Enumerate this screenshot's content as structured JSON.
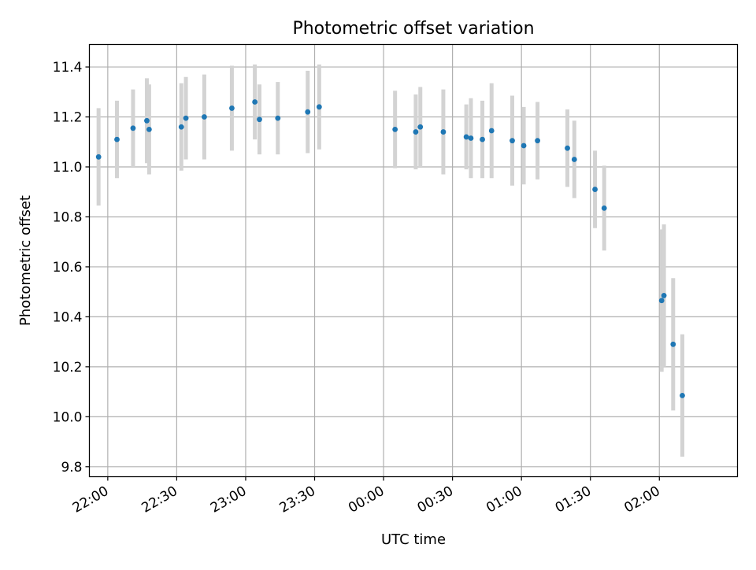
{
  "chart_data": {
    "type": "scatter",
    "title": "Photometric offset variation",
    "xlabel": "UTC time",
    "ylabel": "Photometric offset",
    "xlim": [
      "21:52",
      "02:34"
    ],
    "ylim": [
      9.76,
      11.49
    ],
    "x_ticks": [
      "22:00",
      "22:30",
      "23:00",
      "23:30",
      "00:00",
      "00:30",
      "01:00",
      "01:30",
      "02:00"
    ],
    "y_ticks": [
      "9.8",
      "10.0",
      "10.2",
      "10.4",
      "10.6",
      "10.8",
      "11.0",
      "11.2",
      "11.4"
    ],
    "grid": true,
    "marker_color": "#1f77b4",
    "errorbar_color": "#d3d3d3",
    "series": [
      {
        "points": [
          {
            "t": "21:56",
            "y": 11.04,
            "err": 0.195
          },
          {
            "t": "22:04",
            "y": 11.11,
            "err": 0.155
          },
          {
            "t": "22:11",
            "y": 11.155,
            "err": 0.155
          },
          {
            "t": "22:17",
            "y": 11.185,
            "err": 0.17
          },
          {
            "t": "22:18",
            "y": 11.15,
            "err": 0.18
          },
          {
            "t": "22:32",
            "y": 11.16,
            "err": 0.175
          },
          {
            "t": "22:34",
            "y": 11.195,
            "err": 0.165
          },
          {
            "t": "22:42",
            "y": 11.2,
            "err": 0.17
          },
          {
            "t": "22:54",
            "y": 11.235,
            "err": 0.17
          },
          {
            "t": "23:04",
            "y": 11.26,
            "err": 0.15
          },
          {
            "t": "23:06",
            "y": 11.19,
            "err": 0.14
          },
          {
            "t": "23:14",
            "y": 11.195,
            "err": 0.145
          },
          {
            "t": "23:27",
            "y": 11.22,
            "err": 0.165
          },
          {
            "t": "23:32",
            "y": 11.24,
            "err": 0.17
          },
          {
            "t": "00:05",
            "y": 11.15,
            "err": 0.155
          },
          {
            "t": "00:14",
            "y": 11.14,
            "err": 0.15
          },
          {
            "t": "00:16",
            "y": 11.16,
            "err": 0.16
          },
          {
            "t": "00:26",
            "y": 11.14,
            "err": 0.17
          },
          {
            "t": "00:36",
            "y": 11.12,
            "err": 0.13
          },
          {
            "t": "00:38",
            "y": 11.115,
            "err": 0.16
          },
          {
            "t": "00:43",
            "y": 11.11,
            "err": 0.155
          },
          {
            "t": "00:47",
            "y": 11.145,
            "err": 0.19
          },
          {
            "t": "00:56",
            "y": 11.105,
            "err": 0.18
          },
          {
            "t": "01:01",
            "y": 11.085,
            "err": 0.155
          },
          {
            "t": "01:07",
            "y": 11.105,
            "err": 0.155
          },
          {
            "t": "01:20",
            "y": 11.075,
            "err": 0.155
          },
          {
            "t": "01:23",
            "y": 11.03,
            "err": 0.155
          },
          {
            "t": "01:32",
            "y": 10.91,
            "err": 0.155
          },
          {
            "t": "01:36",
            "y": 10.835,
            "err": 0.17
          },
          {
            "t": "02:01",
            "y": 10.465,
            "err": 0.285
          },
          {
            "t": "02:02",
            "y": 10.485,
            "err": 0.285
          },
          {
            "t": "02:06",
            "y": 10.29,
            "err": 0.265
          },
          {
            "t": "02:10",
            "y": 10.085,
            "err": 0.245
          }
        ]
      }
    ]
  }
}
